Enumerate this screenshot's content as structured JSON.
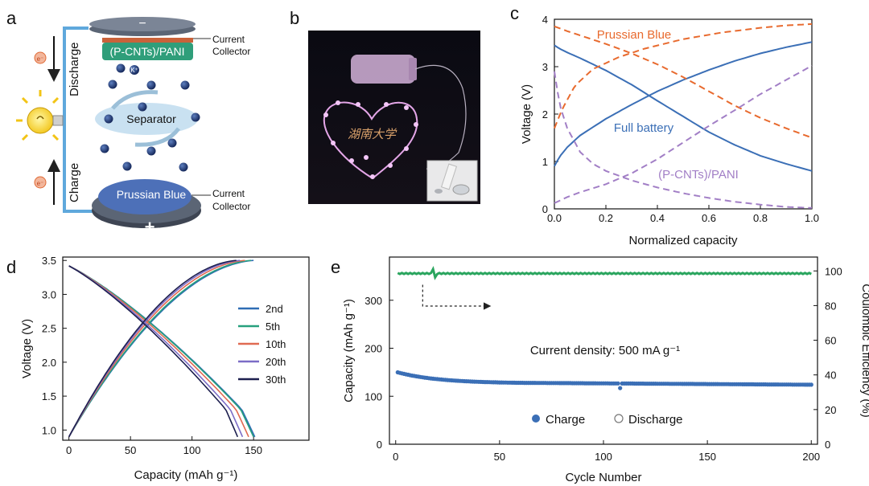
{
  "panels": {
    "a": {
      "label": "a",
      "top_electrode": "(P-CNTs)/PANI",
      "bottom_electrode": "Prussian Blue",
      "separator": "Separator",
      "ion": "K⁺",
      "current_collector_top": [
        "Current",
        "Collector"
      ],
      "current_collector_bottom": [
        "Current",
        "Collector"
      ],
      "discharge": "Discharge",
      "charge": "Charge",
      "minus": "−",
      "plus": "+",
      "electron": "e⁻"
    },
    "b": {
      "label": "b",
      "handwriting": "湖南大学"
    },
    "c": {
      "label": "c"
    },
    "d": {
      "label": "d"
    },
    "e": {
      "label": "e",
      "annotation": "Current density: 500 mA g⁻¹"
    }
  },
  "chart_data": [
    {
      "id": "c",
      "type": "line",
      "xlabel": "Normalized capacity",
      "ylabel": "Voltage (V)",
      "xlim": [
        0,
        1
      ],
      "ylim": [
        0,
        4
      ],
      "xticks": [
        "0.0",
        "0.2",
        "0.4",
        "0.6",
        "0.8",
        "1.0"
      ],
      "yticks": [
        "0",
        "1",
        "2",
        "3",
        "4"
      ],
      "series": [
        {
          "name": "Full battery",
          "color": "#3b6fb6",
          "style": "solid",
          "curves": [
            {
              "x": [
                0,
                0.02,
                0.05,
                0.1,
                0.2,
                0.3,
                0.4,
                0.5,
                0.6,
                0.7,
                0.8,
                0.9,
                1.0
              ],
              "y": [
                3.45,
                3.38,
                3.3,
                3.18,
                2.92,
                2.62,
                2.28,
                1.95,
                1.62,
                1.35,
                1.12,
                0.95,
                0.8
              ]
            },
            {
              "x": [
                0,
                0.02,
                0.05,
                0.1,
                0.2,
                0.3,
                0.4,
                0.5,
                0.6,
                0.7,
                0.8,
                0.9,
                1.0
              ],
              "y": [
                0.9,
                1.1,
                1.3,
                1.55,
                1.9,
                2.2,
                2.48,
                2.72,
                2.93,
                3.12,
                3.28,
                3.41,
                3.52
              ]
            }
          ]
        },
        {
          "name": "Prussian Blue",
          "color": "#e86a2e",
          "style": "dashed",
          "curves": [
            {
              "x": [
                0,
                0.05,
                0.1,
                0.2,
                0.3,
                0.4,
                0.5,
                0.6,
                0.7,
                0.8,
                0.9,
                1.0
              ],
              "y": [
                3.85,
                3.75,
                3.66,
                3.48,
                3.28,
                3.05,
                2.78,
                2.48,
                2.18,
                1.92,
                1.7,
                1.5
              ]
            },
            {
              "x": [
                0,
                0.03,
                0.08,
                0.15,
                0.25,
                0.35,
                0.5,
                0.65,
                0.8,
                0.9,
                1.0
              ],
              "y": [
                1.7,
                2.1,
                2.6,
                2.95,
                3.2,
                3.38,
                3.58,
                3.72,
                3.82,
                3.87,
                3.9
              ]
            }
          ]
        },
        {
          "name": "(P-CNTs)/PANI",
          "color": "#a27fc6",
          "style": "dashed",
          "curves": [
            {
              "x": [
                0,
                0.02,
                0.05,
                0.1,
                0.15,
                0.2,
                0.3,
                0.4,
                0.5,
                0.6,
                0.7,
                0.8,
                0.9,
                1.0
              ],
              "y": [
                2.9,
                2.2,
                1.7,
                1.2,
                0.95,
                0.8,
                0.6,
                0.45,
                0.33,
                0.23,
                0.15,
                0.09,
                0.04,
                0.02
              ]
            },
            {
              "x": [
                0,
                0.05,
                0.1,
                0.2,
                0.3,
                0.4,
                0.5,
                0.6,
                0.7,
                0.8,
                0.9,
                1.0
              ],
              "y": [
                0.12,
                0.25,
                0.35,
                0.52,
                0.75,
                1.05,
                1.4,
                1.75,
                2.08,
                2.42,
                2.72,
                3.02
              ]
            }
          ]
        }
      ],
      "labels": [
        "Prussian Blue",
        "Full battery",
        "(P-CNTs)/PANI"
      ]
    },
    {
      "id": "d",
      "type": "line",
      "xlabel": "Capacity (mAh g⁻¹)",
      "ylabel": "Voltage (V)",
      "xlim": [
        -5,
        195
      ],
      "ylim": [
        0.85,
        3.55
      ],
      "xticks": [
        0,
        50,
        100,
        150
      ],
      "yticks": [
        "1.0",
        "1.5",
        "2.0",
        "2.5",
        "3.0",
        "3.5"
      ],
      "legend": "right",
      "series": [
        {
          "name": "2nd",
          "color": "#2f6db5",
          "charge_end": 150,
          "discharge_end": 151
        },
        {
          "name": "5th",
          "color": "#27a07d",
          "charge_end": 148,
          "discharge_end": 150
        },
        {
          "name": "10th",
          "color": "#e06a52",
          "charge_end": 143,
          "discharge_end": 146
        },
        {
          "name": "20th",
          "color": "#7b6cc6",
          "charge_end": 139,
          "discharge_end": 141
        },
        {
          "name": "30th",
          "color": "#1d1f4f",
          "charge_end": 136,
          "discharge_end": 137
        }
      ],
      "voltage_start": 3.42,
      "voltage_min": 0.9,
      "voltage_max": 3.5
    },
    {
      "id": "e",
      "type": "scatter",
      "xlabel": "Cycle Number",
      "ylabel": "Capacity (mAh g⁻¹)",
      "y2label": "Coulombic Efficiency (%)",
      "xlim": [
        -3,
        203
      ],
      "ylim": [
        0,
        390
      ],
      "y2lim": [
        0,
        108
      ],
      "xticks": [
        0,
        50,
        100,
        150,
        200
      ],
      "yticks": [
        0,
        100,
        200,
        300
      ],
      "y2ticks": [
        0,
        20,
        40,
        60,
        80,
        100
      ],
      "legend": [
        "Charge",
        "Discharge"
      ],
      "charge_color": "#3b6fb6",
      "ce_color": "#2aa55e",
      "capacity": {
        "start": 151,
        "mid": 128,
        "end": 124,
        "dip_cycle": 108,
        "dip_value": 117
      },
      "ce": {
        "value": 98.5,
        "spike_cycle": 18,
        "spike_value": 101
      }
    }
  ]
}
